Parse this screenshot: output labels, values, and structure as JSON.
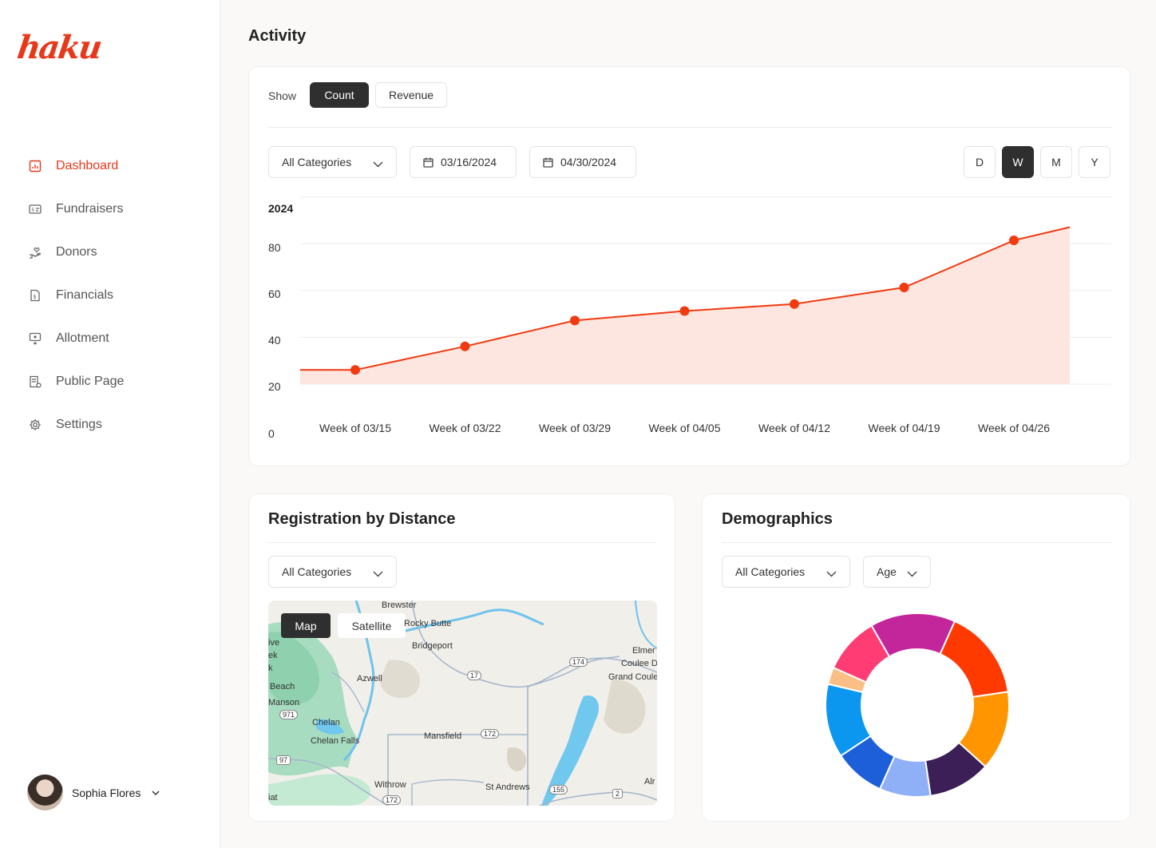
{
  "brand": {
    "logo_text": "haku",
    "accent": "#e8381a"
  },
  "sidebar": {
    "items": [
      {
        "label": "Dashboard",
        "icon": "chart-icon",
        "active": true
      },
      {
        "label": "Fundraisers",
        "icon": "fundraiser-icon"
      },
      {
        "label": "Donors",
        "icon": "donor-hand-icon"
      },
      {
        "label": "Financials",
        "icon": "financials-doc-icon"
      },
      {
        "label": "Allotment",
        "icon": "allotment-icon"
      },
      {
        "label": "Public Page",
        "icon": "public-page-icon"
      },
      {
        "label": "Settings",
        "icon": "gear-icon"
      }
    ]
  },
  "user": {
    "name": "Sophia Flores"
  },
  "main": {
    "title": "Activity"
  },
  "activity": {
    "show_label": "Show",
    "toggle": [
      "Count",
      "Revenue"
    ],
    "toggle_selected": "Count",
    "category_select": "All Categories",
    "start_date": "03/16/2024",
    "end_date": "04/30/2024",
    "periods": [
      "D",
      "W",
      "M",
      "Y"
    ],
    "period_selected": "W"
  },
  "chart_data": {
    "type": "area",
    "title": "2024",
    "categories": [
      "Week of 03/15",
      "Week of 03/22",
      "Week of 03/29",
      "Week of 04/05",
      "Week of 04/12",
      "Week of 04/19",
      "Week of 04/26"
    ],
    "series": [
      {
        "values": [
          26,
          36,
          47,
          51,
          54,
          61,
          81
        ],
        "color": "#f03a10",
        "fill": "#fde6e0"
      }
    ],
    "yticks": [
      0,
      20,
      40,
      60,
      80
    ],
    "ylim": [
      0,
      90
    ],
    "grid": true,
    "legend": false
  },
  "registration": {
    "title": "Registration by Distance",
    "category_select": "All Categories",
    "map_tabs": [
      "Map",
      "Satellite"
    ],
    "map_tab_selected": "Map",
    "places": [
      "Brewster",
      "Rocky Butte",
      "Bridgeport",
      "Elmer",
      "Coulee D",
      "Grand Coule",
      "Azwell",
      "Beach",
      "Manson",
      "Chelan",
      "Chelan Falls",
      "Mansfield",
      "Withrow",
      "St Andrews",
      "Alr",
      "ive",
      "ek",
      "k",
      "iat"
    ],
    "routes": [
      "17",
      "174",
      "971",
      "172",
      "97",
      "155",
      "2",
      "172"
    ]
  },
  "demographics": {
    "title": "Demographics",
    "category_select": "All Categories",
    "dimension_select": "Age",
    "donut": [
      {
        "value": 16,
        "color": "#ff3a00"
      },
      {
        "value": 14,
        "color": "#ff9500"
      },
      {
        "value": 11,
        "color": "#3b1f56"
      },
      {
        "value": 9,
        "color": "#8fb0f6"
      },
      {
        "value": 9,
        "color": "#1c5fd8"
      },
      {
        "value": 13,
        "color": "#0b97ef"
      },
      {
        "value": 3,
        "color": "#fbbf86"
      },
      {
        "value": 10,
        "color": "#ff3d74"
      },
      {
        "value": 15,
        "color": "#c2269a"
      }
    ]
  }
}
